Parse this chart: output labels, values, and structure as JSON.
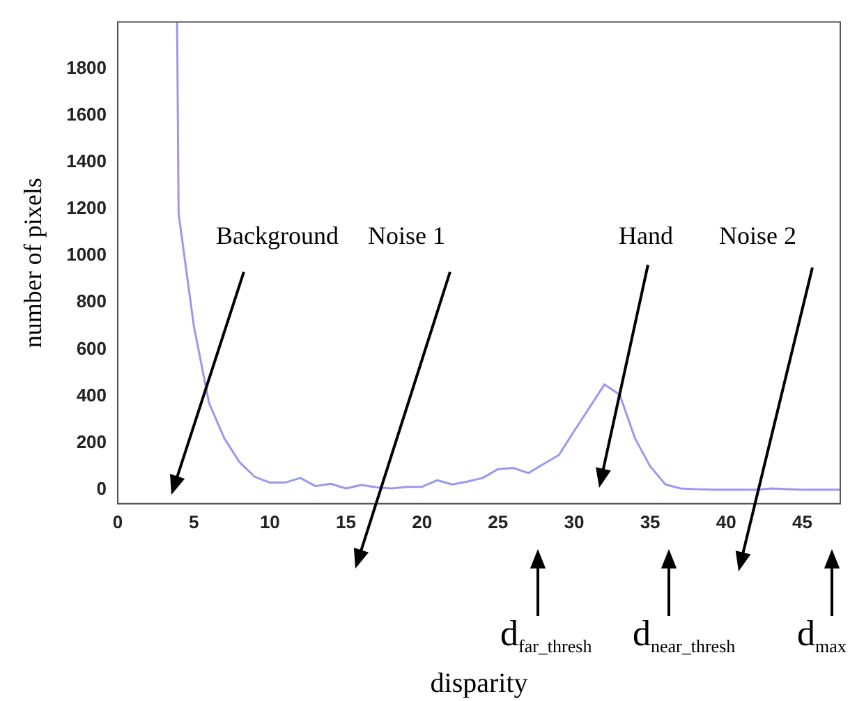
{
  "chart_data": {
    "type": "line",
    "xlabel": "disparity",
    "ylabel": "number of pixels",
    "x": [
      3.9,
      4,
      5,
      6,
      7,
      8,
      9,
      10,
      11,
      12,
      13,
      14,
      15,
      16,
      17,
      18,
      19,
      20,
      21,
      22,
      23,
      24,
      25,
      26,
      27,
      28,
      29,
      30,
      31,
      32,
      33,
      34,
      35,
      36,
      37,
      38,
      39,
      40,
      41,
      42,
      43,
      44,
      45,
      46,
      47.5
    ],
    "series": [
      {
        "color": "#9999ee",
        "values": [
          2000,
          1180,
          700,
          370,
          220,
          118,
          55,
          30,
          30,
          50,
          15,
          25,
          5,
          20,
          10,
          5,
          12,
          12,
          40,
          22,
          35,
          50,
          88,
          93,
          71,
          110,
          148,
          250,
          350,
          450,
          406,
          220,
          100,
          22,
          5,
          2,
          0,
          0,
          0,
          0,
          5,
          2,
          0,
          0,
          0
        ]
      }
    ],
    "xlim": [
      0,
      47.5
    ],
    "ylim": [
      -60,
      2000
    ],
    "xticks": [
      0,
      5,
      10,
      15,
      20,
      25,
      30,
      35,
      40,
      45
    ],
    "yticks": [
      0,
      200,
      400,
      600,
      800,
      1000,
      1200,
      1400,
      1600,
      1800
    ],
    "grid": false,
    "legend": false,
    "marker": "none",
    "line_style": "solid",
    "annotations": [
      "Background",
      "Noise 1",
      "Hand",
      "Noise 2",
      "d$_{far_thresh}$",
      "d$_{near_thresh}$",
      "d$_{max}$"
    ]
  }
}
